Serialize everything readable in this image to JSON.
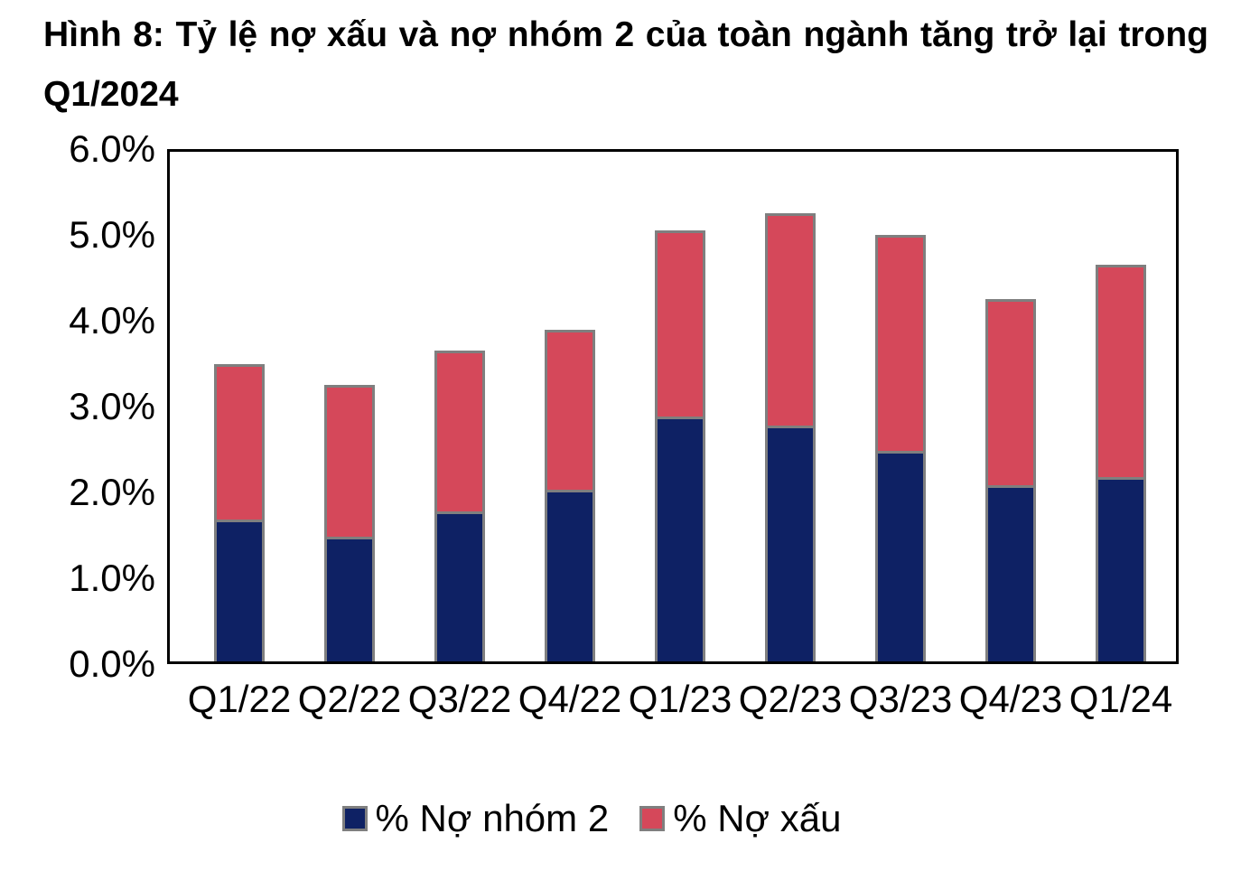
{
  "title": {
    "line1": "Hình 8: Tỷ lệ nợ xấu và nợ nhóm 2 của toàn ngành tăng trở lại trong",
    "line2": "Q1/2024"
  },
  "colors": {
    "group2_navy": "#0e2164",
    "npl_red": "#d5485a",
    "bar_border_gray": "#7f7f7f",
    "axis_black": "#000000"
  },
  "chart_data": {
    "type": "bar",
    "stacked": true,
    "title": "Hình 8: Tỷ lệ nợ xấu và nợ nhóm 2 của toàn ngành tăng trở lại trong Q1/2024",
    "xlabel": "",
    "ylabel": "",
    "categories": [
      "Q1/22",
      "Q2/22",
      "Q3/22",
      "Q4/22",
      "Q1/23",
      "Q2/23",
      "Q3/23",
      "Q4/23",
      "Q1/24"
    ],
    "series": [
      {
        "name": "% Nợ nhóm 2",
        "color": "#0e2164",
        "values": [
          1.65,
          1.45,
          1.75,
          2.0,
          2.85,
          2.75,
          2.45,
          2.05,
          2.15
        ]
      },
      {
        "name": "% Nợ xấu",
        "color": "#d5485a",
        "values": [
          1.85,
          1.8,
          1.9,
          1.9,
          2.2,
          2.5,
          2.55,
          2.2,
          2.5
        ]
      }
    ],
    "stack_totals": [
      3.5,
      3.25,
      3.65,
      3.9,
      5.05,
      5.25,
      5.0,
      4.25,
      4.65
    ],
    "ylim": [
      0.0,
      6.0
    ],
    "ytick_labels": [
      "0.0%",
      "1.0%",
      "2.0%",
      "3.0%",
      "4.0%",
      "5.0%",
      "6.0%"
    ],
    "grid": false,
    "legend_position": "bottom"
  }
}
